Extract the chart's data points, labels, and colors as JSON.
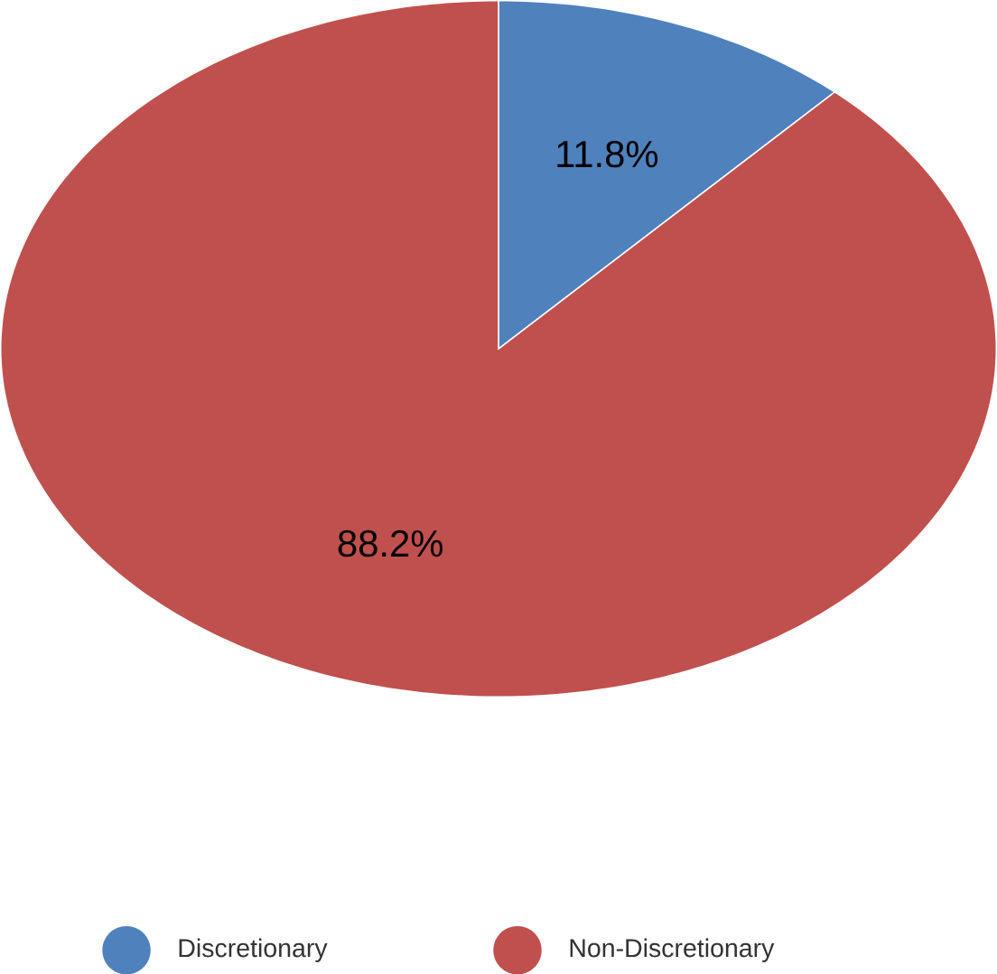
{
  "chart_data": {
    "type": "pie",
    "categories": [
      "Discretionary",
      "Non-Discretionary"
    ],
    "values": [
      11.8,
      88.2
    ],
    "colors": [
      "#4f81bd",
      "#c0504d"
    ],
    "value_labels": [
      "11.8%",
      "88.2%"
    ],
    "legend": "bottom"
  }
}
